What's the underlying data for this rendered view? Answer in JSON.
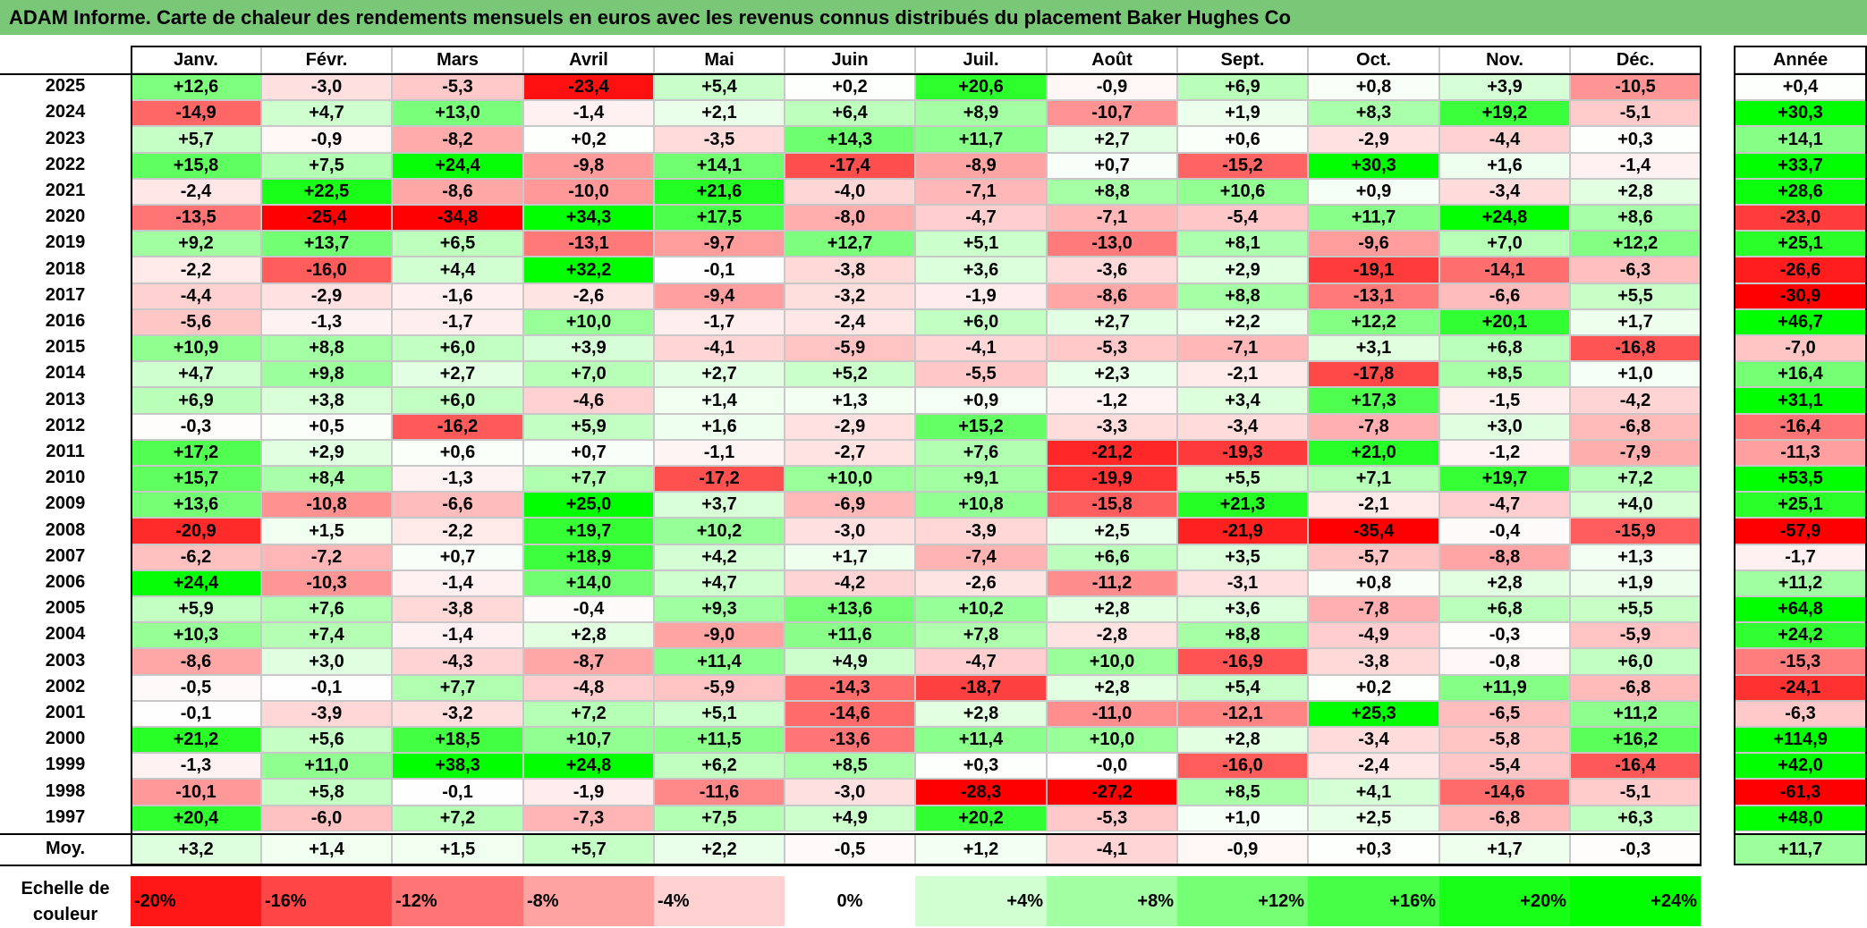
{
  "title": "ADAM Informe. Carte de chaleur des rendements mensuels en euros avec les revenus connus distribués du placement Baker Hughes Co",
  "chart_data": {
    "type": "heatmap",
    "title": "ADAM Informe. Carte de chaleur des rendements mensuels en euros avec les revenus connus distribués du placement Baker Hughes Co",
    "months": [
      "Janv.",
      "Févr.",
      "Mars",
      "Avril",
      "Mai",
      "Juin",
      "Juil.",
      "Août",
      "Sept.",
      "Oct.",
      "Nov.",
      "Déc."
    ],
    "year_header": "Année",
    "rows": [
      {
        "year": "2025",
        "values": [
          "+12,6",
          "-3,0",
          "-5,3",
          "-23,4",
          "+5,4",
          "+0,2",
          "+20,6",
          "-0,9",
          "+6,9",
          "+0,8",
          "+3,9",
          "-10,5"
        ],
        "annual": "+0,4"
      },
      {
        "year": "2024",
        "values": [
          "-14,9",
          "+4,7",
          "+13,0",
          "-1,4",
          "+2,1",
          "+6,4",
          "+8,9",
          "-10,7",
          "+1,9",
          "+8,3",
          "+19,2",
          "-5,1"
        ],
        "annual": "+30,3"
      },
      {
        "year": "2023",
        "values": [
          "+5,7",
          "-0,9",
          "-8,2",
          "+0,2",
          "-3,5",
          "+14,3",
          "+11,7",
          "+2,7",
          "+0,6",
          "-2,9",
          "-4,4",
          "+0,3"
        ],
        "annual": "+14,1"
      },
      {
        "year": "2022",
        "values": [
          "+15,8",
          "+7,5",
          "+24,4",
          "-9,8",
          "+14,1",
          "-17,4",
          "-8,9",
          "+0,7",
          "-15,2",
          "+30,3",
          "+1,6",
          "-1,4"
        ],
        "annual": "+33,7"
      },
      {
        "year": "2021",
        "values": [
          "-2,4",
          "+22,5",
          "-8,6",
          "-10,0",
          "+21,6",
          "-4,0",
          "-7,1",
          "+8,8",
          "+10,6",
          "+0,9",
          "-3,4",
          "+2,8"
        ],
        "annual": "+28,6"
      },
      {
        "year": "2020",
        "values": [
          "-13,5",
          "-25,4",
          "-34,8",
          "+34,3",
          "+17,5",
          "-8,0",
          "-4,7",
          "-7,1",
          "-5,4",
          "+11,7",
          "+24,8",
          "+8,6"
        ],
        "annual": "-23,0"
      },
      {
        "year": "2019",
        "values": [
          "+9,2",
          "+13,7",
          "+6,5",
          "-13,1",
          "-9,7",
          "+12,7",
          "+5,1",
          "-13,0",
          "+8,1",
          "-9,6",
          "+7,0",
          "+12,2"
        ],
        "annual": "+25,1"
      },
      {
        "year": "2018",
        "values": [
          "-2,2",
          "-16,0",
          "+4,4",
          "+32,2",
          "-0,1",
          "-3,8",
          "+3,6",
          "-3,6",
          "+2,9",
          "-19,1",
          "-14,1",
          "-6,3"
        ],
        "annual": "-26,6"
      },
      {
        "year": "2017",
        "values": [
          "-4,4",
          "-2,9",
          "-1,6",
          "-2,6",
          "-9,4",
          "-3,2",
          "-1,9",
          "-8,6",
          "+8,8",
          "-13,1",
          "-6,6",
          "+5,5"
        ],
        "annual": "-30,9"
      },
      {
        "year": "2016",
        "values": [
          "-5,6",
          "-1,3",
          "-1,7",
          "+10,0",
          "-1,7",
          "-2,4",
          "+6,0",
          "+2,7",
          "+2,2",
          "+12,2",
          "+20,1",
          "+1,7"
        ],
        "annual": "+46,7"
      },
      {
        "year": "2015",
        "values": [
          "+10,9",
          "+8,8",
          "+6,0",
          "+3,9",
          "-4,1",
          "-5,9",
          "-4,1",
          "-5,3",
          "-7,1",
          "+3,1",
          "+6,8",
          "-16,8"
        ],
        "annual": "-7,0"
      },
      {
        "year": "2014",
        "values": [
          "+4,7",
          "+9,8",
          "+2,7",
          "+7,0",
          "+2,7",
          "+5,2",
          "-5,5",
          "+2,3",
          "-2,1",
          "-17,8",
          "+8,5",
          "+1,0"
        ],
        "annual": "+16,4"
      },
      {
        "year": "2013",
        "values": [
          "+6,9",
          "+3,8",
          "+6,0",
          "-4,6",
          "+1,4",
          "+1,3",
          "+0,9",
          "-1,2",
          "+3,4",
          "+17,3",
          "-1,5",
          "-4,2"
        ],
        "annual": "+31,1"
      },
      {
        "year": "2012",
        "values": [
          "-0,3",
          "+0,5",
          "-16,2",
          "+5,9",
          "+1,6",
          "-2,9",
          "+15,2",
          "-3,3",
          "-3,4",
          "-7,8",
          "+3,0",
          "-6,8"
        ],
        "annual": "-16,4"
      },
      {
        "year": "2011",
        "values": [
          "+17,2",
          "+2,9",
          "+0,6",
          "+0,7",
          "-1,1",
          "-2,7",
          "+7,6",
          "-21,2",
          "-19,3",
          "+21,0",
          "-1,2",
          "-7,9"
        ],
        "annual": "-11,3"
      },
      {
        "year": "2010",
        "values": [
          "+15,7",
          "+8,4",
          "-1,3",
          "+7,7",
          "-17,2",
          "+10,0",
          "+9,1",
          "-19,9",
          "+5,5",
          "+7,1",
          "+19,7",
          "+7,2"
        ],
        "annual": "+53,5"
      },
      {
        "year": "2009",
        "values": [
          "+13,6",
          "-10,8",
          "-6,6",
          "+25,0",
          "+3,7",
          "-6,9",
          "+10,8",
          "-15,8",
          "+21,3",
          "-2,1",
          "-4,7",
          "+4,0"
        ],
        "annual": "+25,1"
      },
      {
        "year": "2008",
        "values": [
          "-20,9",
          "+1,5",
          "-2,2",
          "+19,7",
          "+10,2",
          "-3,0",
          "-3,9",
          "+2,5",
          "-21,9",
          "-35,4",
          "-0,4",
          "-15,9"
        ],
        "annual": "-57,9"
      },
      {
        "year": "2007",
        "values": [
          "-6,2",
          "-7,2",
          "+0,7",
          "+18,9",
          "+4,2",
          "+1,7",
          "-7,4",
          "+6,6",
          "+3,5",
          "-5,7",
          "-8,8",
          "+1,3"
        ],
        "annual": "-1,7"
      },
      {
        "year": "2006",
        "values": [
          "+24,4",
          "-10,3",
          "-1,4",
          "+14,0",
          "+4,7",
          "-4,2",
          "-2,6",
          "-11,2",
          "-3,1",
          "+0,8",
          "+2,8",
          "+1,9"
        ],
        "annual": "+11,2"
      },
      {
        "year": "2005",
        "values": [
          "+5,9",
          "+7,6",
          "-3,8",
          "-0,4",
          "+9,3",
          "+13,6",
          "+10,2",
          "+2,8",
          "+3,6",
          "-7,8",
          "+6,8",
          "+5,5"
        ],
        "annual": "+64,8"
      },
      {
        "year": "2004",
        "values": [
          "+10,3",
          "+7,4",
          "-1,4",
          "+2,8",
          "-9,0",
          "+11,6",
          "+7,8",
          "-2,8",
          "+8,8",
          "-4,9",
          "-0,3",
          "-5,9"
        ],
        "annual": "+24,2"
      },
      {
        "year": "2003",
        "values": [
          "-8,6",
          "+3,0",
          "-4,3",
          "-8,7",
          "+11,4",
          "+4,9",
          "-4,7",
          "+10,0",
          "-16,9",
          "-3,8",
          "-0,8",
          "+6,0"
        ],
        "annual": "-15,3"
      },
      {
        "year": "2002",
        "values": [
          "-0,5",
          "-0,1",
          "+7,7",
          "-4,8",
          "-5,9",
          "-14,3",
          "-18,7",
          "+2,8",
          "+5,4",
          "+0,2",
          "+11,9",
          "-6,8"
        ],
        "annual": "-24,1"
      },
      {
        "year": "2001",
        "values": [
          "-0,1",
          "-3,9",
          "-3,2",
          "+7,2",
          "+5,1",
          "-14,6",
          "+2,8",
          "-11,0",
          "-12,1",
          "+25,3",
          "-6,5",
          "+11,2"
        ],
        "annual": "-6,3"
      },
      {
        "year": "2000",
        "values": [
          "+21,2",
          "+5,6",
          "+18,5",
          "+10,7",
          "+11,5",
          "-13,6",
          "+11,4",
          "+10,0",
          "+2,8",
          "-3,4",
          "-5,8",
          "+16,2"
        ],
        "annual": "+114,9"
      },
      {
        "year": "1999",
        "values": [
          "-1,3",
          "+11,0",
          "+38,3",
          "+24,8",
          "+6,2",
          "+8,5",
          "+0,3",
          "-0,0",
          "-16,0",
          "-2,4",
          "-5,4",
          "-16,4"
        ],
        "annual": "+42,0"
      },
      {
        "year": "1998",
        "values": [
          "-10,1",
          "+5,8",
          "-0,1",
          "-1,9",
          "-11,6",
          "-3,0",
          "-28,3",
          "-27,2",
          "+8,5",
          "+4,1",
          "-14,6",
          "-5,1"
        ],
        "annual": "-61,3"
      },
      {
        "year": "1997",
        "values": [
          "+20,4",
          "-6,0",
          "+7,2",
          "-7,3",
          "+7,5",
          "+4,9",
          "+20,2",
          "-5,3",
          "+1,0",
          "+2,5",
          "-6,8",
          "+6,3"
        ],
        "annual": "+48,0"
      }
    ],
    "average": {
      "label": "Moy.",
      "values": [
        "+3,2",
        "+1,4",
        "+1,5",
        "+5,7",
        "+2,2",
        "-0,5",
        "+1,2",
        "-4,1",
        "-0,9",
        "+0,3",
        "+1,7",
        "-0,3"
      ],
      "annual": "+11,7"
    },
    "scale": {
      "label_line1": "Echelle de",
      "label_line2": "couleur",
      "steps": [
        "-20%",
        "-16%",
        "-12%",
        "-8%",
        "-4%",
        "0%",
        "+4%",
        "+8%",
        "+12%",
        "+16%",
        "+20%",
        "+24%"
      ]
    },
    "colors": {
      "negative": "#ff0000",
      "neutral": "#ffffff",
      "positive": "#00ff00",
      "title_bg": "#78c878"
    }
  }
}
